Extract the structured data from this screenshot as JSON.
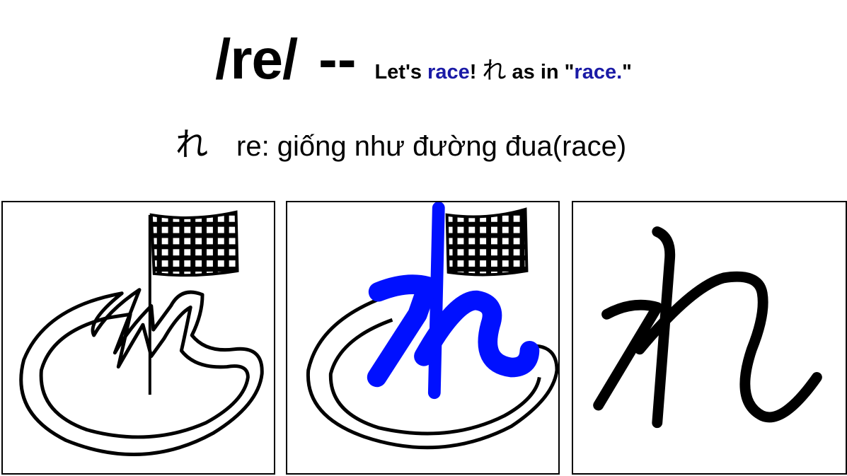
{
  "title": {
    "romaji": "/re/",
    "dash": "--",
    "tag_prefix": "Let's ",
    "tag_race1": "race",
    "tag_bang": "!",
    "tag_kana": "れ",
    "tag_middle": " as in \"",
    "tag_race2": "race.",
    "tag_end": "\""
  },
  "subtitle": {
    "kana": "れ",
    "text": "re: giống như đường đua(race)"
  },
  "colors": {
    "accent_blue": "#1a1aa6",
    "stroke_blue": "#0010ff"
  },
  "panels": [
    {
      "name": "mnemonic-drawing",
      "icon": "race-track-flag-icon"
    },
    {
      "name": "mnemonic-with-kana-overlay",
      "icon": "race-track-kana-overlay-icon"
    },
    {
      "name": "kana-character",
      "icon": "hiragana-re-icon"
    }
  ]
}
